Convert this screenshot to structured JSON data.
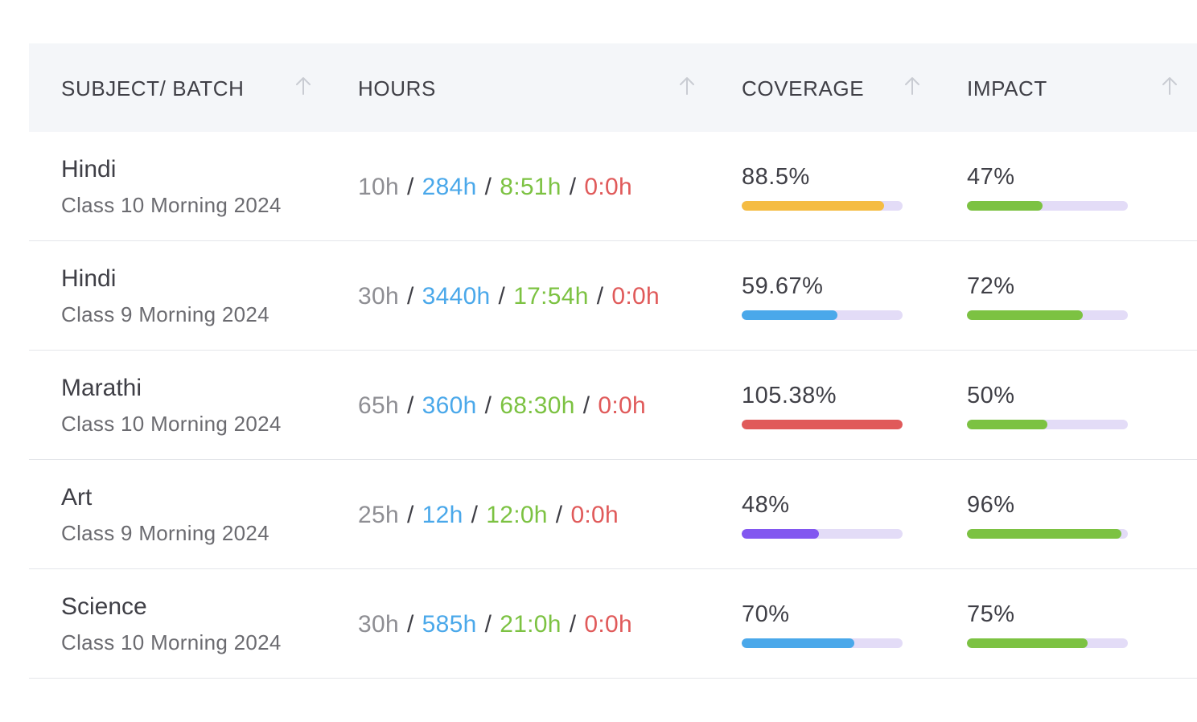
{
  "headers": {
    "subject": "SUBJECT/ BATCH",
    "hours": "HOURS",
    "coverage": "COVERAGE",
    "impact": "IMPACT",
    "sort_icon": "arrow-up-icon"
  },
  "colors": {
    "header_bg": "#f4f6f9",
    "planned": "#8e8e93",
    "total": "#4aa8ea",
    "done": "#7cc242",
    "over": "#e05a5a",
    "track": "#e3dcf7",
    "yellow": "#f5bc42",
    "blue": "#4aa8ea",
    "red": "#e05a5a",
    "purple": "#8257f0",
    "green": "#7cc242"
  },
  "separator": "/",
  "rows": [
    {
      "subject": "Hindi",
      "batch": "Class 10 Morning 2024",
      "hours": {
        "planned": "10h",
        "total": "284h",
        "done": "8:51h",
        "over": "0:0h"
      },
      "coverage": {
        "label": "88.5%",
        "fill": 0.885,
        "color": "#f5bc42"
      },
      "impact": {
        "label": "47%",
        "fill": 0.47,
        "color": "#7cc242"
      }
    },
    {
      "subject": "Hindi",
      "batch": "Class 9 Morning 2024",
      "hours": {
        "planned": "30h",
        "total": "3440h",
        "done": "17:54h",
        "over": "0:0h"
      },
      "coverage": {
        "label": "59.67%",
        "fill": 0.5967,
        "color": "#4aa8ea"
      },
      "impact": {
        "label": "72%",
        "fill": 0.72,
        "color": "#7cc242"
      }
    },
    {
      "subject": "Marathi",
      "batch": "Class 10 Morning 2024",
      "hours": {
        "planned": "65h",
        "total": "360h",
        "done": "68:30h",
        "over": "0:0h"
      },
      "coverage": {
        "label": "105.38%",
        "fill": 1.0,
        "color": "#e05a5a"
      },
      "impact": {
        "label": "50%",
        "fill": 0.5,
        "color": "#7cc242"
      }
    },
    {
      "subject": "Art",
      "batch": "Class 9 Morning 2024",
      "hours": {
        "planned": "25h",
        "total": "12h",
        "done": "12:0h",
        "over": "0:0h"
      },
      "coverage": {
        "label": "48%",
        "fill": 0.48,
        "color": "#8257f0"
      },
      "impact": {
        "label": "96%",
        "fill": 0.96,
        "color": "#7cc242"
      }
    },
    {
      "subject": "Science",
      "batch": "Class 10 Morning 2024",
      "hours": {
        "planned": "30h",
        "total": "585h",
        "done": "21:0h",
        "over": "0:0h"
      },
      "coverage": {
        "label": "70%",
        "fill": 0.7,
        "color": "#4aa8ea"
      },
      "impact": {
        "label": "75%",
        "fill": 0.75,
        "color": "#7cc242"
      }
    }
  ]
}
